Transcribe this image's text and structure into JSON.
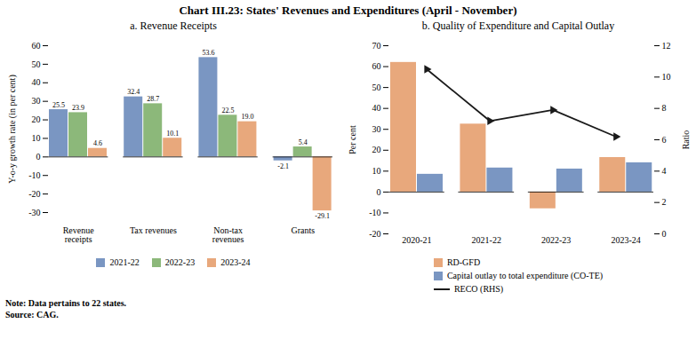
{
  "title": "Chart III.23: States' Revenues and Expenditures (April - November)",
  "annotations": [
    "Note: Data pertains to 22 states.",
    "Source: CAG."
  ],
  "chart_data": [
    {
      "type": "bar",
      "title": "a. Revenue Receipts",
      "categories": [
        "Revenue\nreceipts",
        "Tax revenues",
        "Non-tax\nrevenues",
        "Grants"
      ],
      "series": [
        {
          "name": "2021-22",
          "color": "#7a96c2",
          "values": [
            25.5,
            32.4,
            53.6,
            -2.1
          ]
        },
        {
          "name": "2022-23",
          "color": "#8cb87a",
          "values": [
            23.9,
            28.7,
            22.5,
            5.4
          ]
        },
        {
          "name": "2023-24",
          "color": "#e8a87c",
          "values": [
            4.6,
            10.1,
            19.0,
            -29.1
          ],
          "value_labels": [
            "4.6",
            "10.1",
            "19.0",
            "-29.1"
          ]
        }
      ],
      "ylabel": "Y-o-y growth rate (in per cent)",
      "ylim": [
        -30,
        60
      ],
      "yticks": [
        -30,
        -20,
        -10,
        0,
        10,
        20,
        30,
        40,
        50,
        60
      ],
      "grid": false,
      "legend": "bottom",
      "data_labels": true
    },
    {
      "type": "bar",
      "title": "b. Quality of Expenditure and Capital Outlay",
      "categories": [
        "2020-21",
        "2021-22",
        "2022-23",
        "2023-24"
      ],
      "series": [
        {
          "name": "RD-GFD",
          "type": "bar",
          "color": "#e8a87c",
          "values": [
            62.0,
            32.5,
            -8.0,
            16.5
          ]
        },
        {
          "name": "Capital outlay to total expenditure (CO-TE)",
          "type": "bar",
          "color": "#7a96c2",
          "values": [
            8.5,
            11.5,
            11.0,
            14.0
          ]
        },
        {
          "name": "RECO (RHS)",
          "type": "line",
          "axis": "y2",
          "color": "#1a1a1a",
          "marker": "triangle-right",
          "line_style": "solid",
          "values": [
            10.5,
            7.2,
            7.9,
            6.2
          ]
        }
      ],
      "ylabel": "Per cent",
      "y2label": "Ratio",
      "ylim": [
        -20,
        70
      ],
      "yticks": [
        -20,
        -10,
        0,
        10,
        20,
        30,
        40,
        50,
        60,
        70
      ],
      "y2lim": [
        0,
        12
      ],
      "y2ticks": [
        0,
        2,
        4,
        6,
        8,
        10,
        12
      ],
      "grid": false,
      "legend": "bottom",
      "data_labels": false
    }
  ]
}
